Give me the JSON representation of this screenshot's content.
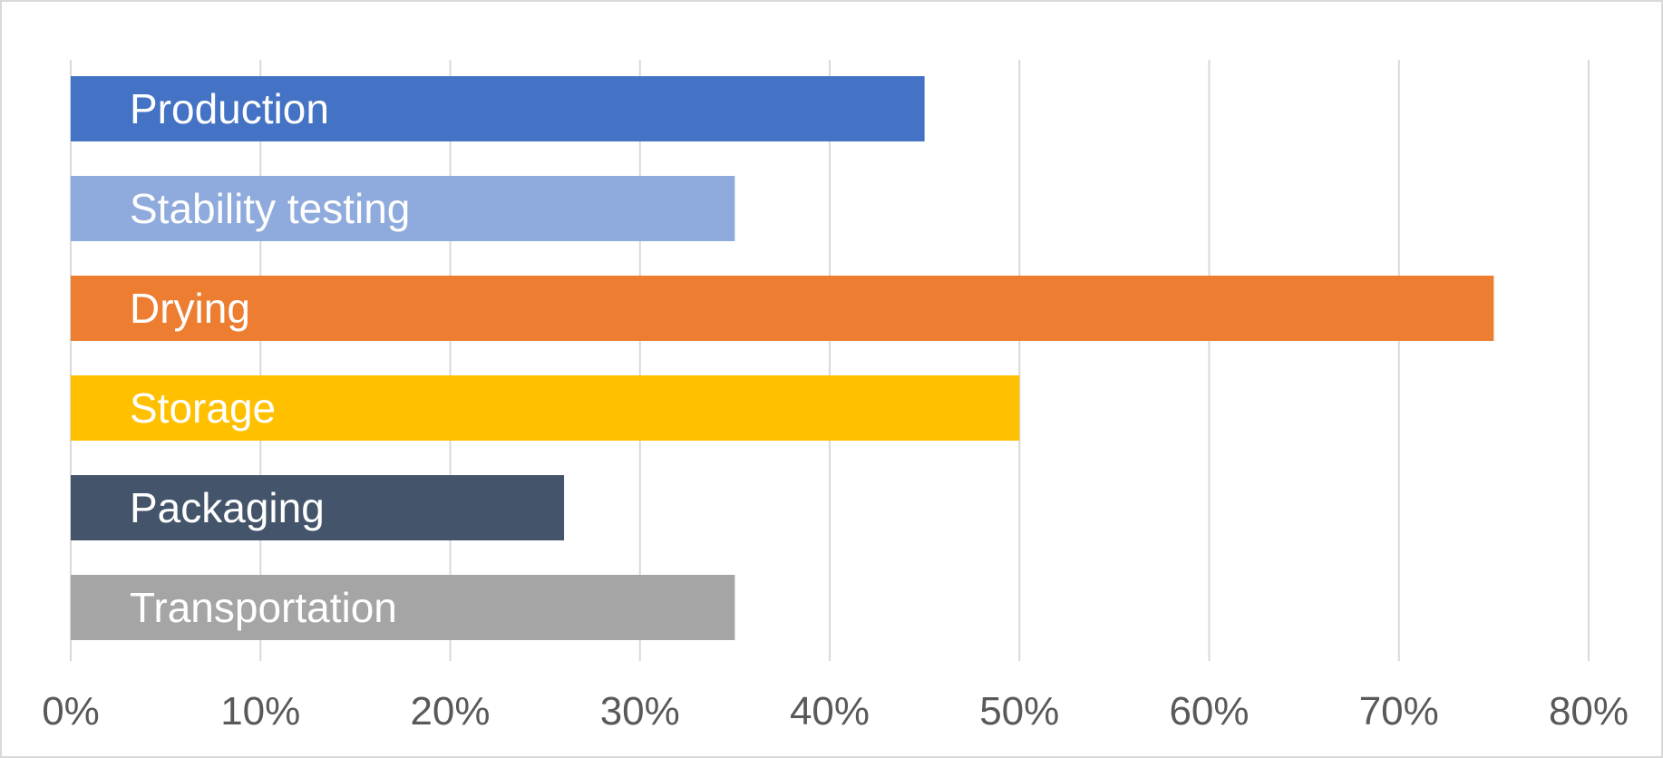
{
  "chart_data": {
    "type": "bar",
    "orientation": "horizontal",
    "categories": [
      "Production",
      "Stability testing",
      "Drying",
      "Storage",
      "Packaging",
      "Transportation"
    ],
    "values": [
      45,
      35,
      75,
      50,
      26,
      35
    ],
    "colors": [
      "#4472c4",
      "#8faadc",
      "#ed7d31",
      "#ffc000",
      "#44546a",
      "#a5a5a5"
    ],
    "xlim": [
      0,
      80
    ],
    "xticks": [
      0,
      10,
      20,
      30,
      40,
      50,
      60,
      70,
      80
    ],
    "xtick_labels": [
      "0%",
      "10%",
      "20%",
      "30%",
      "40%",
      "50%",
      "60%",
      "70%",
      "80%"
    ],
    "value_unit": "%",
    "grid": true,
    "legend": "none",
    "category_labels_inside_bars": true,
    "title": "",
    "xlabel": "",
    "ylabel": ""
  }
}
